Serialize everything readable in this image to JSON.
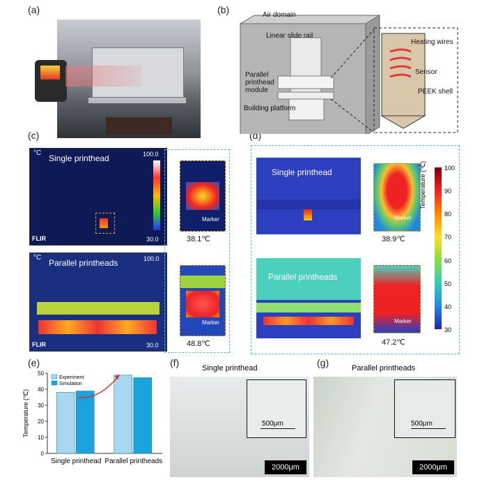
{
  "panels": {
    "a": "(a)",
    "b": "(b)",
    "c": "(c)",
    "d": "(d)",
    "e": "(e)",
    "f": "(f)",
    "g": "(g)"
  },
  "panel_b": {
    "air_domain": "Air domain",
    "linear_slide_rail": "Linear slide rail",
    "parallel_module": "Parallel\nprinthead\nmodule",
    "building_platform": "Building platform",
    "heating_wires": "Heating wires",
    "sensor": "Sensor",
    "peek_shell": "PEEK shell"
  },
  "panel_c": {
    "top_label": "Single printhead",
    "bottom_label": "Parallel printheads",
    "unit": "°C",
    "scale_max": "100.0",
    "scale_min": "30.0",
    "flir": "FLIR",
    "marker": "Marker",
    "top_temp": "38.1℃",
    "bottom_temp": "48.8℃"
  },
  "panel_d": {
    "top_label": "Single printhead",
    "bottom_label": "Parallel printheads",
    "marker": "Marker",
    "top_temp": "38.9℃",
    "bottom_temp": "47.2℃",
    "colorbar_title": "Temperature (℃)",
    "colorbar_ticks": [
      "100",
      "90",
      "80",
      "70",
      "60",
      "50",
      "40",
      "30"
    ]
  },
  "panel_f": {
    "title": "Single printhead",
    "inset_scale": "500μm",
    "scale": "2000μm"
  },
  "panel_g": {
    "title": "Parallel printheads",
    "inset_scale": "500μm",
    "scale": "2000μm"
  },
  "colors": {
    "experiment": "#a7d8f0",
    "simulation": "#1aa3de",
    "arrow": "#d62a2a"
  },
  "chart_data": {
    "type": "bar",
    "categories": [
      "Single printhead",
      "Parallel printheads"
    ],
    "series": [
      {
        "name": "Experiment",
        "values": [
          38.1,
          48.8
        ]
      },
      {
        "name": "Simulation",
        "values": [
          38.9,
          47.2
        ]
      }
    ],
    "title": "",
    "xlabel": "",
    "ylabel": "Temperature (℃)",
    "ylim": [
      0,
      50
    ],
    "yticks": [
      "0",
      "10",
      "20",
      "30",
      "40",
      "50"
    ],
    "legend": "top-left"
  }
}
